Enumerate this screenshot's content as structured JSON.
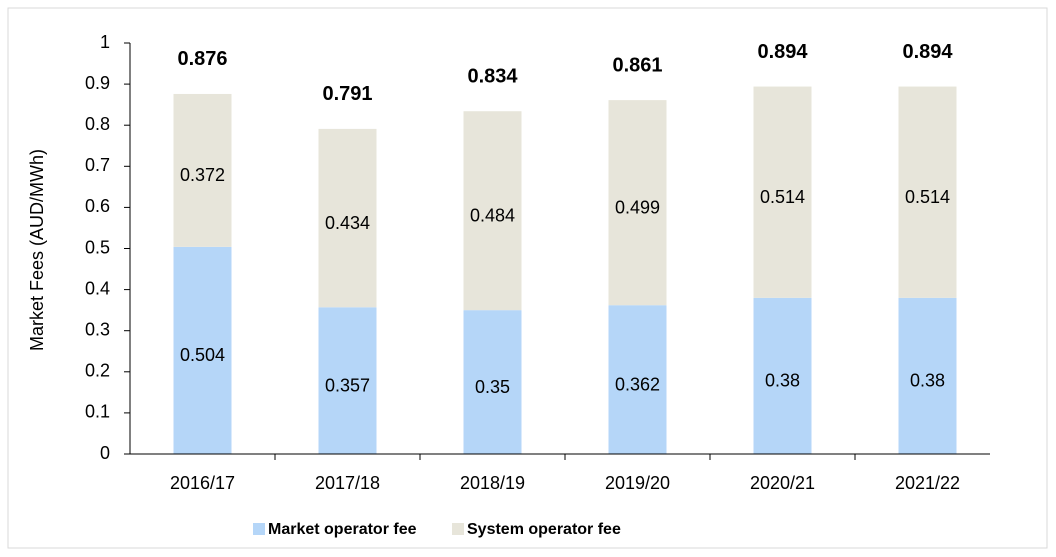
{
  "chart_data": {
    "type": "stacked_bar",
    "y_label": "Market Fees (AUD/MWh)",
    "categories": [
      "2016/17",
      "2017/18",
      "2018/19",
      "2019/20",
      "2020/21",
      "2021/22"
    ],
    "series": [
      {
        "name": "Market operator fee",
        "color": "#b5d6f8",
        "values": [
          0.504,
          0.357,
          0.35,
          0.362,
          0.38,
          0.38
        ]
      },
      {
        "name": "System operator fee",
        "color": "#e7e5da",
        "values": [
          0.372,
          0.434,
          0.484,
          0.499,
          0.514,
          0.514
        ]
      }
    ],
    "totals": [
      0.876,
      0.791,
      0.834,
      0.861,
      0.894,
      0.894
    ],
    "ylim": [
      0,
      1
    ],
    "yticks": [
      0,
      0.1,
      0.2,
      0.3,
      0.4,
      0.5,
      0.6,
      0.7,
      0.8,
      0.9,
      1
    ],
    "grid": false,
    "legend": "bottom"
  }
}
